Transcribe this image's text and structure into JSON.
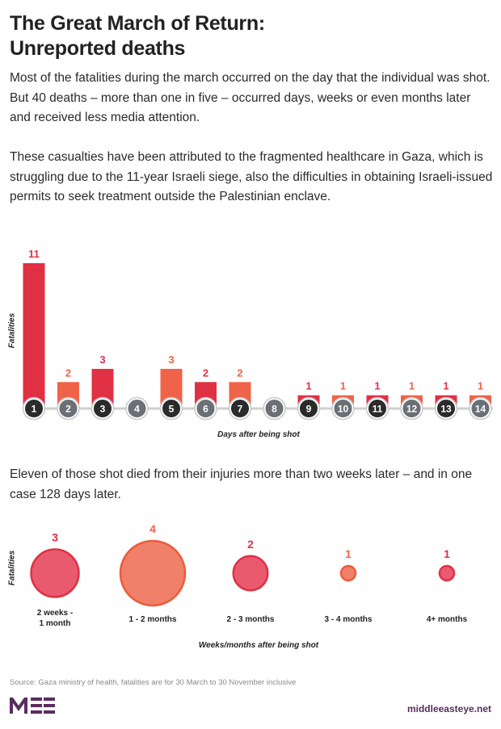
{
  "title_line1": "The Great March of Return:",
  "title_line2": "Unreported deaths",
  "intro1": "Most of the fatalities during the march occurred on the day that the individual was shot. But 40 deaths  – more than one in five – occurred days, weeks or even months later and received less media attention.",
  "intro2": "These casualties have been attributed to the fragmented healthcare in Gaza, which is struggling due to the 11-year Israeli siege, also  the difficulties in obtaining Israeli-issued permits to seek treatment outside the Palestinian enclave.",
  "mid_text": "Eleven of those shot died from their injuries more than two weeks later – and in one case 128 days later.",
  "source": "Source: Gaza ministry of health, fatalities are for 30 March to 30 November inclusive",
  "logo_text": "MEE",
  "site": "middleeasteye.net",
  "colors": {
    "red": "#e03044",
    "orange": "#ef6348",
    "label_red": "#e03044",
    "label_orange": "#ef6348",
    "dark_circle": "#2b2b2b",
    "grey_circle": "#6b6f76",
    "axis": "#cfcfcf",
    "brand": "#5a2d5f"
  },
  "chart_data": [
    {
      "type": "bar",
      "xlabel": "Days after being shot",
      "ylabel": "Fatalities",
      "categories": [
        "1",
        "2",
        "3",
        "4",
        "5",
        "6",
        "7",
        "8",
        "9",
        "10",
        "11",
        "12",
        "13",
        "14"
      ],
      "values": [
        11,
        2,
        3,
        0,
        3,
        2,
        2,
        0,
        1,
        1,
        1,
        1,
        1,
        1
      ],
      "bar_colors": [
        "red",
        "orange",
        "red",
        "none",
        "orange",
        "red",
        "orange",
        "none",
        "red",
        "orange",
        "red",
        "orange",
        "red",
        "orange"
      ],
      "marker_style": [
        "dark",
        "grey",
        "dark",
        "grey",
        "dark",
        "grey",
        "dark",
        "grey",
        "dark",
        "grey",
        "dark",
        "grey",
        "dark",
        "grey"
      ],
      "ylim": [
        0,
        11
      ],
      "grid": false
    },
    {
      "type": "bubble",
      "xlabel": "Weeks/months after being shot",
      "ylabel": "Fatalities",
      "categories": [
        "2 weeks - 1 month",
        "1 - 2 months",
        "2 - 3 months",
        "3 - 4 months",
        "4+ months"
      ],
      "values": [
        3,
        4,
        2,
        1,
        1
      ],
      "bubble_colors": [
        "#ea5a6e",
        "#f0806a",
        "#ea5a6e",
        "#f0806a",
        "#ea5a6e"
      ],
      "label_colors": [
        "red",
        "orange",
        "red",
        "orange",
        "red"
      ]
    }
  ]
}
